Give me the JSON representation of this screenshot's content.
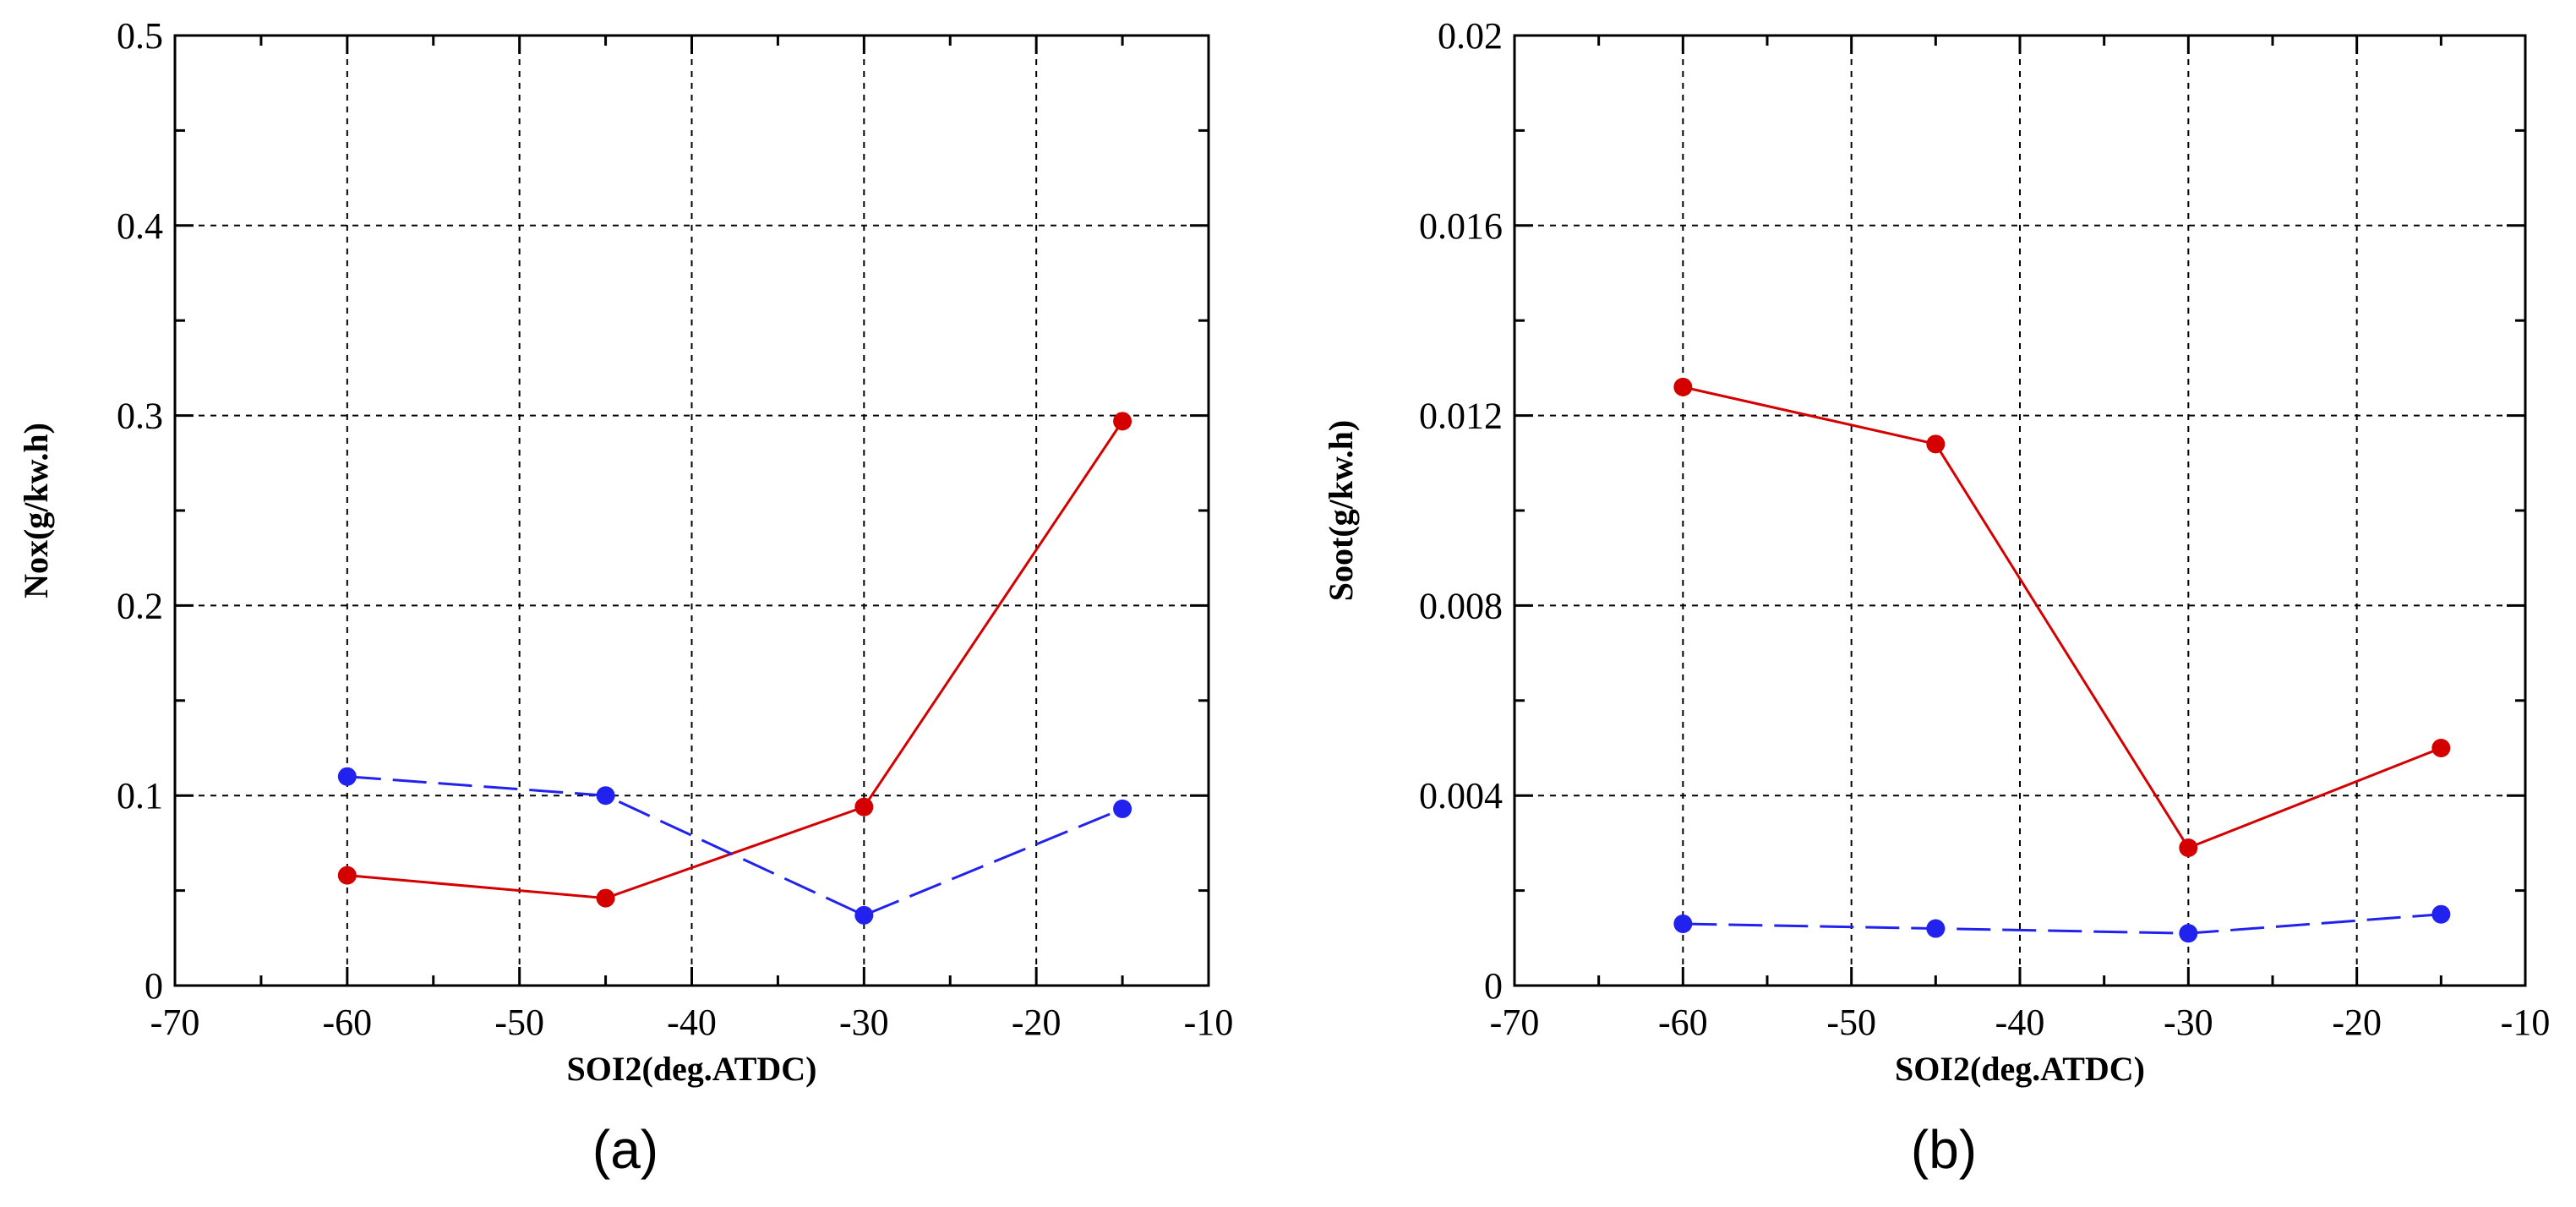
{
  "chart_data": [
    {
      "type": "line",
      "panel_label": "(a)",
      "xlabel": "SOI2(deg.ATDC)",
      "ylabel": "Nox(g/kw.h)",
      "xlim": [
        -70,
        -10
      ],
      "ylim": [
        0,
        0.5
      ],
      "xticks": [
        -70,
        -60,
        -50,
        -40,
        -30,
        -20,
        -10
      ],
      "xtick_labels": [
        "-70",
        "-60",
        "-50",
        "-40",
        "-30",
        "-20",
        "-10"
      ],
      "yticks": [
        0,
        0.1,
        0.2,
        0.3,
        0.4,
        0.5
      ],
      "ytick_labels": [
        "0",
        "0.1",
        "0.2",
        "0.3",
        "0.4",
        "0.5"
      ],
      "grid": true,
      "series": [
        {
          "name": "red solid",
          "color": "#d40000",
          "style": "solid",
          "x": [
            -60,
            -45,
            -30,
            -15
          ],
          "y": [
            0.058,
            0.046,
            0.094,
            0.297
          ]
        },
        {
          "name": "blue dashed",
          "color": "#2222ee",
          "style": "dashed",
          "x": [
            -60,
            -45,
            -30,
            -15
          ],
          "y": [
            0.11,
            0.1,
            0.037,
            0.093
          ]
        }
      ]
    },
    {
      "type": "line",
      "panel_label": "(b)",
      "xlabel": "SOI2(deg.ATDC)",
      "ylabel": "Soot(g/kw.h)",
      "xlim": [
        -70,
        -10
      ],
      "ylim": [
        0,
        0.02
      ],
      "xticks": [
        -70,
        -60,
        -50,
        -40,
        -30,
        -20,
        -10
      ],
      "xtick_labels": [
        "-70",
        "-60",
        "-50",
        "-40",
        "-30",
        "-20",
        "-10"
      ],
      "yticks": [
        0,
        0.004,
        0.008,
        0.012,
        0.016,
        0.02
      ],
      "ytick_labels": [
        "0",
        "0.004",
        "0.008",
        "0.012",
        "0.016",
        "0.02"
      ],
      "grid": true,
      "series": [
        {
          "name": "red solid",
          "color": "#d40000",
          "style": "solid",
          "x": [
            -60,
            -45,
            -30,
            -15
          ],
          "y": [
            0.0126,
            0.0114,
            0.0029,
            0.005
          ]
        },
        {
          "name": "blue dashed",
          "color": "#2222ee",
          "style": "dashed",
          "x": [
            -60,
            -45,
            -30,
            -15
          ],
          "y": [
            0.0013,
            0.0012,
            0.0011,
            0.0015
          ]
        }
      ]
    }
  ]
}
